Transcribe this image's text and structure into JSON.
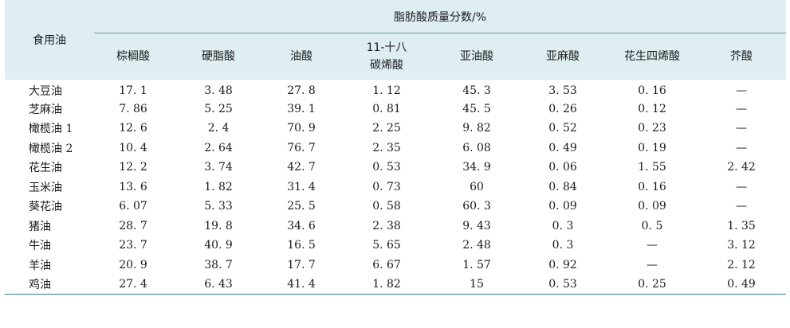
{
  "table": {
    "row_header": "食用油",
    "group_header": "脂肪酸质量分数/%",
    "columns": [
      {
        "line1": "棕榈酸",
        "line2": ""
      },
      {
        "line1": "硬脂酸",
        "line2": ""
      },
      {
        "line1": "油酸",
        "line2": ""
      },
      {
        "line1": "11-十八",
        "line2": "碳烯酸"
      },
      {
        "line1": "亚油酸",
        "line2": ""
      },
      {
        "line1": "亚麻酸",
        "line2": ""
      },
      {
        "line1": "花生四烯酸",
        "line2": ""
      },
      {
        "line1": "芥酸",
        "line2": ""
      }
    ],
    "rows": [
      {
        "name": "大豆油",
        "values": [
          "17. 1",
          "3. 48",
          "27. 8",
          "1. 12",
          "45. 3",
          "3. 53",
          "0. 16",
          "—"
        ]
      },
      {
        "name": "芝麻油",
        "values": [
          "7. 86",
          "5. 25",
          "39. 1",
          "0. 81",
          "45. 5",
          "0. 26",
          "0. 12",
          "—"
        ]
      },
      {
        "name": "橄榄油 1",
        "values": [
          "12. 6",
          "2. 4",
          "70. 9",
          "2. 25",
          "9. 82",
          "0. 52",
          "0. 23",
          "—"
        ]
      },
      {
        "name": "橄榄油 2",
        "values": [
          "10. 4",
          "2. 64",
          "76. 7",
          "2. 35",
          "6. 08",
          "0. 49",
          "0. 19",
          "—"
        ]
      },
      {
        "name": "花生油",
        "values": [
          "12. 2",
          "3. 74",
          "42. 7",
          "0. 53",
          "34. 9",
          "0. 06",
          "1. 55",
          "2. 42"
        ]
      },
      {
        "name": "玉米油",
        "values": [
          "13. 6",
          "1. 82",
          "31. 4",
          "0. 73",
          "60",
          "0. 84",
          "0. 16",
          "—"
        ]
      },
      {
        "name": "葵花油",
        "values": [
          "6. 07",
          "5. 33",
          "25. 5",
          "0. 58",
          "60. 3",
          "0. 09",
          "0. 09",
          "—"
        ]
      },
      {
        "name": "猪油",
        "values": [
          "28. 7",
          "19. 8",
          "34. 6",
          "2. 38",
          "9. 43",
          "0. 3",
          "0. 5",
          "1. 35"
        ]
      },
      {
        "name": "牛油",
        "values": [
          "23. 7",
          "40. 9",
          "16. 5",
          "5. 65",
          "2. 48",
          "0. 3",
          "—",
          "3. 12"
        ]
      },
      {
        "name": "羊油",
        "values": [
          "20. 9",
          "38. 7",
          "17. 7",
          "6. 67",
          "1. 57",
          "0. 92",
          "—",
          "2. 12"
        ]
      },
      {
        "name": "鸡油",
        "values": [
          "27. 4",
          "6. 43",
          "41. 4",
          "1. 82",
          "15",
          "0. 53",
          "0. 25",
          "0. 49"
        ]
      }
    ]
  },
  "colors": {
    "header_bg": "#deeef2",
    "rule": "#2f7c8e"
  }
}
